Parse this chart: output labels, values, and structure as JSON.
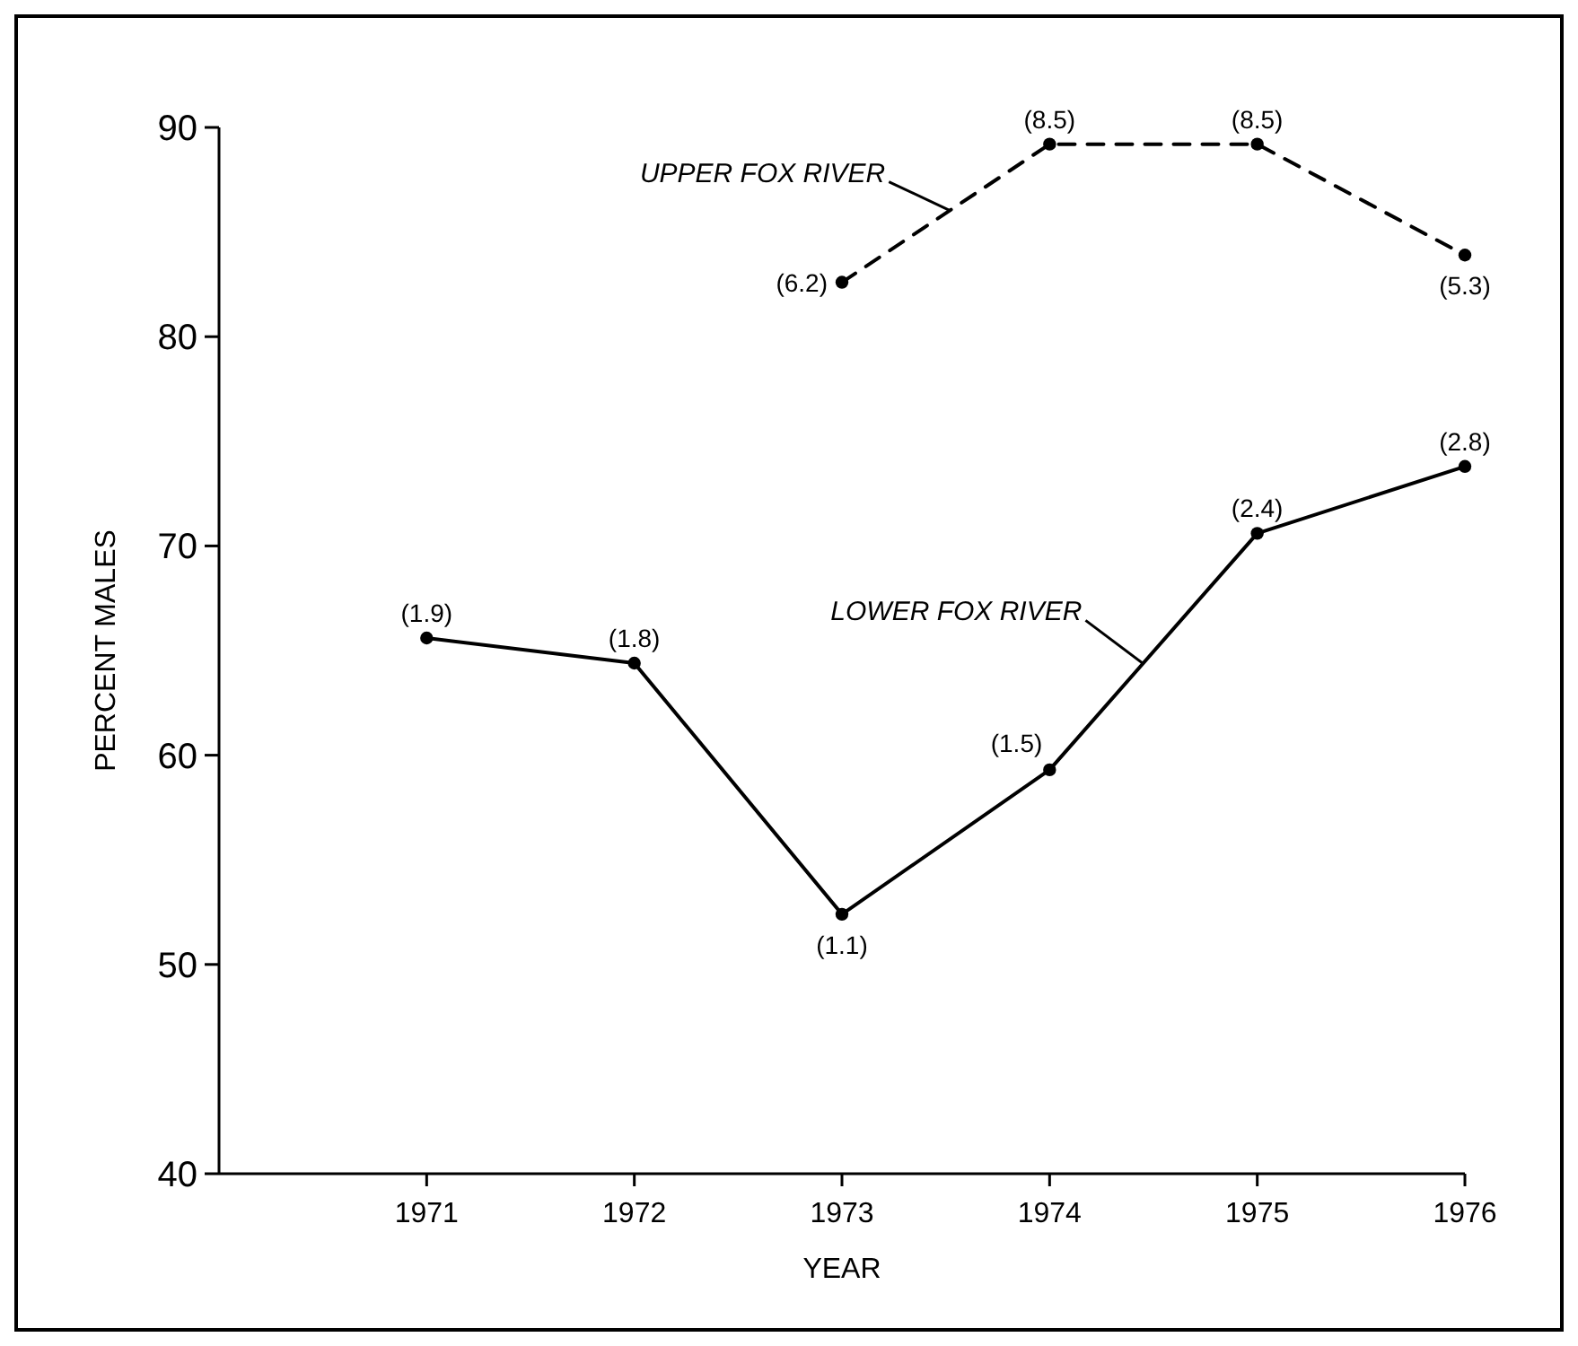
{
  "chart_data": {
    "type": "line",
    "xlabel": "YEAR",
    "ylabel": "PERCENT MALES",
    "x": [
      1971,
      1972,
      1973,
      1974,
      1975,
      1976
    ],
    "xlim": [
      1970,
      1976
    ],
    "xticks": [
      1971,
      1972,
      1973,
      1974,
      1975,
      1976
    ],
    "ylim": [
      40,
      90
    ],
    "yticks": [
      40,
      50,
      60,
      70,
      80,
      90
    ],
    "grid": false,
    "legend": false,
    "marker": "circle",
    "series": [
      {
        "name": "UPPER FOX RIVER",
        "color": "#000000",
        "line_style": "dashed",
        "values": [
          null,
          null,
          82.6,
          89.2,
          89.2,
          83.9
        ]
      },
      {
        "name": "LOWER FOX RIVER",
        "color": "#000000",
        "line_style": "solid",
        "values": [
          65.6,
          64.4,
          52.4,
          59.3,
          70.6,
          73.8
        ]
      }
    ],
    "annotations": [
      {
        "text": "(6.2)",
        "x": 1973,
        "y": 82.6
      },
      {
        "text": "(8.5)",
        "x": 1974,
        "y": 89.2
      },
      {
        "text": "(8.5)",
        "x": 1975,
        "y": 89.2
      },
      {
        "text": "(5.3)",
        "x": 1976,
        "y": 83.9
      },
      {
        "text": "(1.9)",
        "x": 1971,
        "y": 65.6
      },
      {
        "text": "(1.8)",
        "x": 1972,
        "y": 64.4
      },
      {
        "text": "(1.1)",
        "x": 1973,
        "y": 52.4
      },
      {
        "text": "(1.5)",
        "x": 1974,
        "y": 59.3
      },
      {
        "text": "(2.4)",
        "x": 1975,
        "y": 70.6
      },
      {
        "text": "(2.8)",
        "x": 1976,
        "y": 73.8
      }
    ]
  }
}
